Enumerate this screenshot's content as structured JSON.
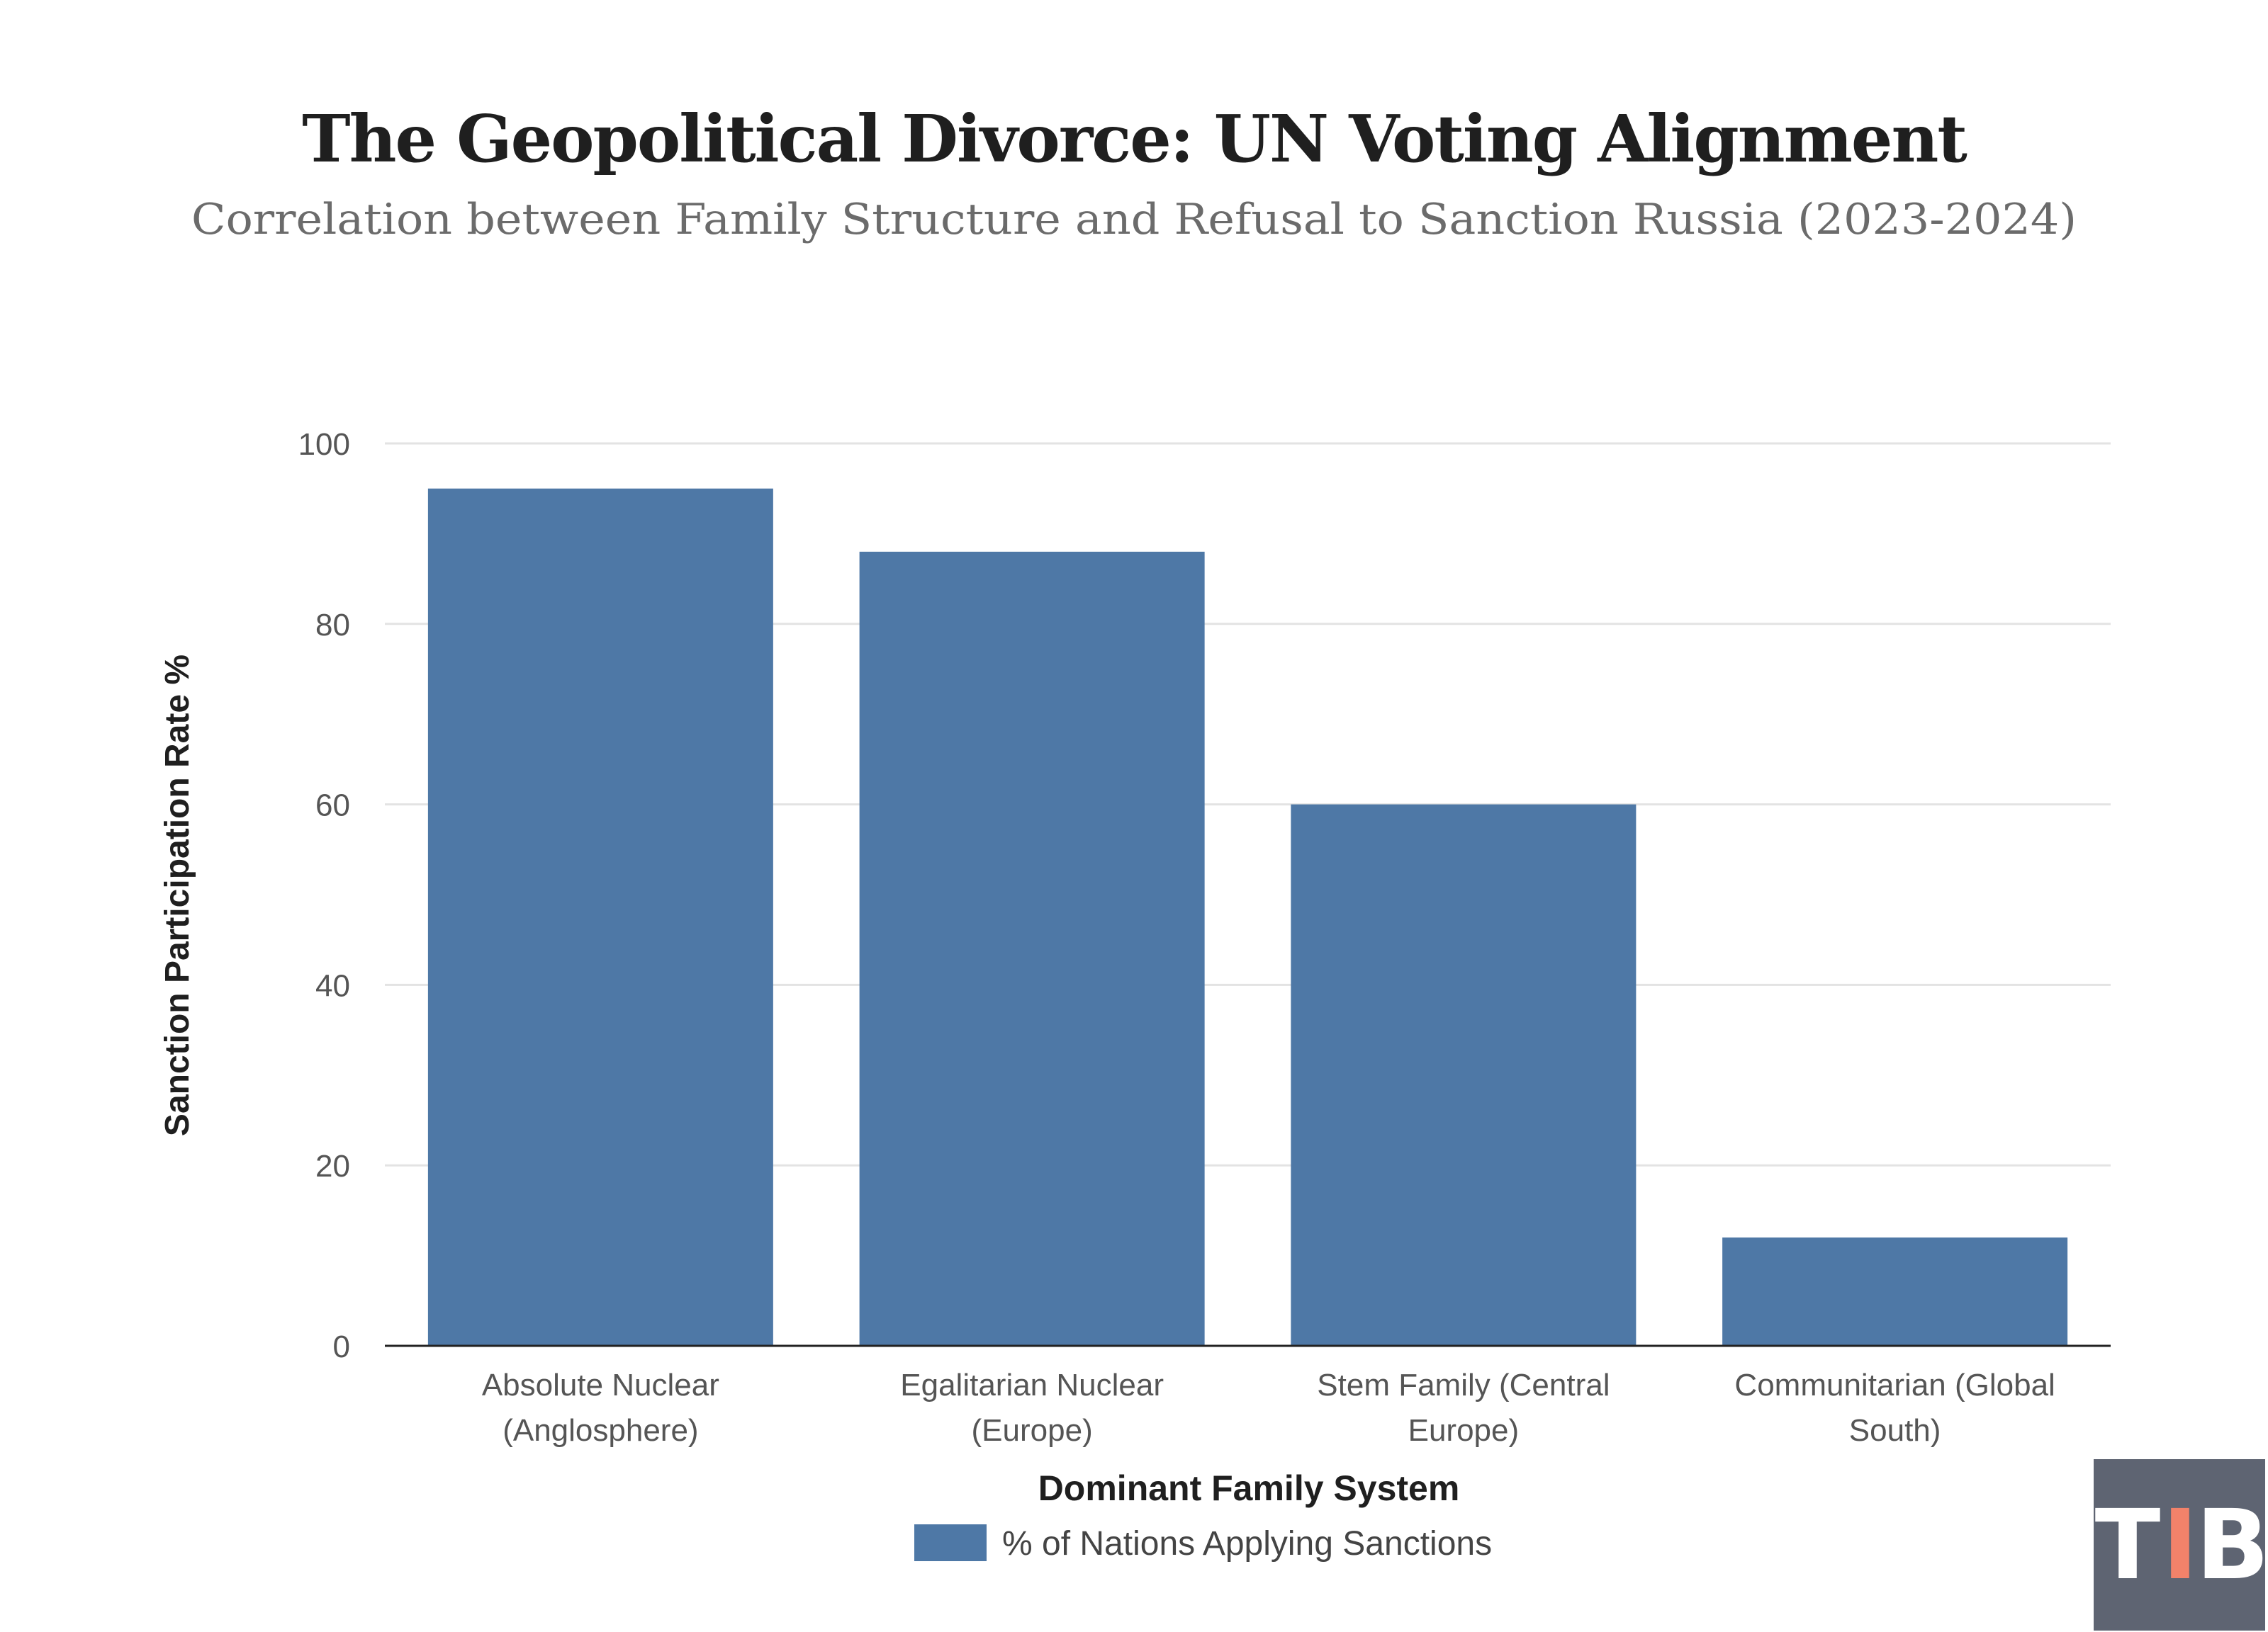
{
  "chart_data": {
    "type": "bar",
    "title": "The Geopolitical Divorce: UN Voting Alignment",
    "subtitle": "Correlation between Family Structure and Refusal to Sanction Russia (2023-2024)",
    "categories": [
      [
        "Absolute Nuclear",
        "(Anglosphere)"
      ],
      [
        "Egalitarian Nuclear",
        "(Europe)"
      ],
      [
        "Stem Family (Central",
        "Europe)"
      ],
      [
        "Communitarian (Global",
        "South)"
      ]
    ],
    "series": [
      {
        "name": "% of Nations Applying Sanctions",
        "values": [
          95,
          88,
          60,
          12
        ],
        "color": "#4e78a6"
      }
    ],
    "xlabel": "Dominant Family System",
    "ylabel": "Sanction Participation Rate %",
    "ylim": [
      0,
      100
    ],
    "yticks": [
      0,
      20,
      40,
      60,
      80,
      100
    ],
    "grid": true,
    "legend_position": "bottom-center"
  },
  "logo": {
    "letters": [
      "T",
      "I",
      "B"
    ],
    "background": "#5e6472",
    "text_color": "#ffffff",
    "accent_color": "#f2826a"
  }
}
